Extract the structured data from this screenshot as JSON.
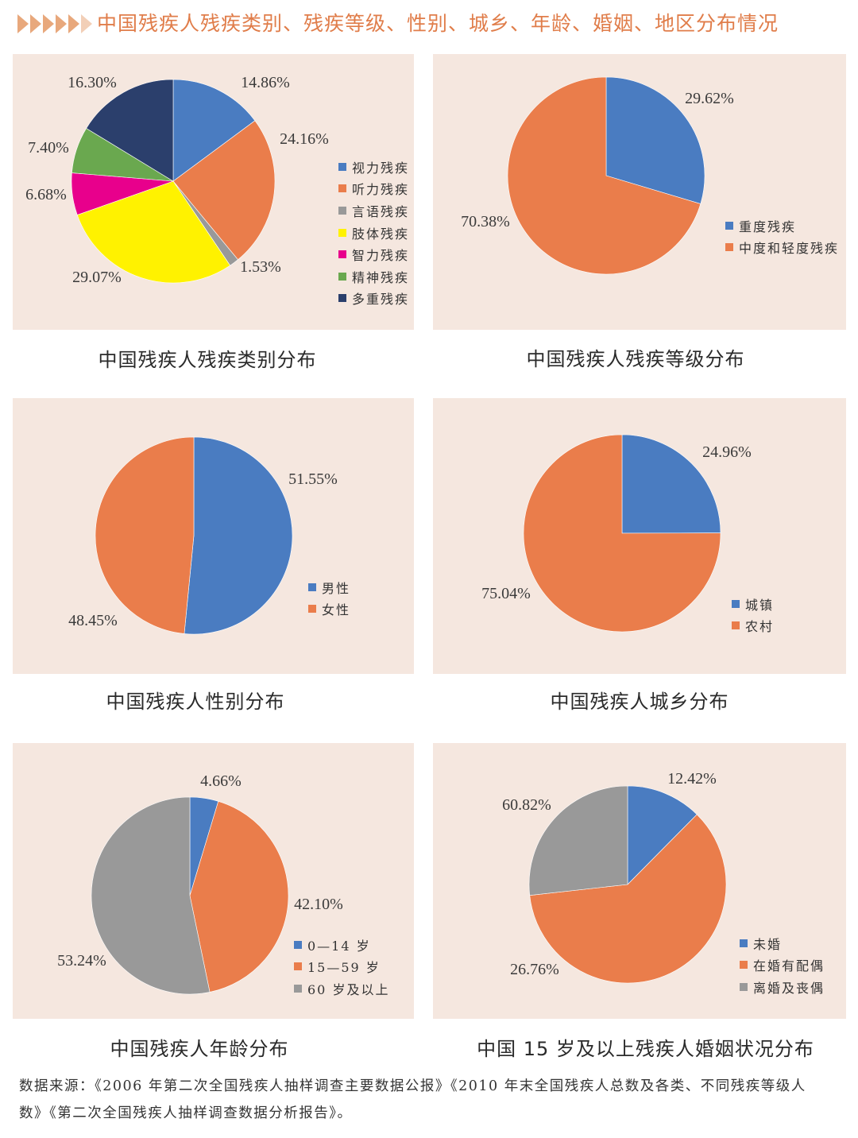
{
  "header": {
    "title": "中国残疾人残疾类别、残疾等级、性别、城乡、年龄、婚姻、地区分布情况",
    "arrow_color": "#e8a87c",
    "title_color": "#e07d4a"
  },
  "colors": {
    "blue": "#4a7cc1",
    "orange": "#ea7d4b",
    "gray": "#999999",
    "yellow": "#fff200",
    "magenta": "#e8008c",
    "green": "#6aa84f",
    "navy": "#2b3f6c",
    "panel_bg": "#f5e7df"
  },
  "chart_data": [
    {
      "type": "pie",
      "title": "中国残疾人残疾类别分布",
      "slices": [
        {
          "label": "视力残疾",
          "value": 14.86,
          "display": "14.86%",
          "color": "#4a7cc1"
        },
        {
          "label": "听力残疾",
          "value": 24.16,
          "display": "24.16%",
          "color": "#ea7d4b"
        },
        {
          "label": "言语残疾",
          "value": 1.53,
          "display": "1.53%",
          "color": "#999999"
        },
        {
          "label": "肢体残疾",
          "value": 29.07,
          "display": "29.07%",
          "color": "#fff200"
        },
        {
          "label": "智力残疾",
          "value": 6.68,
          "display": "6.68%",
          "color": "#e8008c"
        },
        {
          "label": "精神残疾",
          "value": 7.4,
          "display": "7.40%",
          "color": "#6aa84f"
        },
        {
          "label": "多重残疾",
          "value": 16.3,
          "display": "16.30%",
          "color": "#2b3f6c"
        }
      ]
    },
    {
      "type": "pie",
      "title": "中国残疾人残疾等级分布",
      "slices": [
        {
          "label": "重度残疾",
          "value": 29.62,
          "display": "29.62%",
          "color": "#4a7cc1"
        },
        {
          "label": "中度和轻度残疾",
          "value": 70.38,
          "display": "70.38%",
          "color": "#ea7d4b"
        }
      ]
    },
    {
      "type": "pie",
      "title": "中国残疾人性别分布",
      "slices": [
        {
          "label": "男性",
          "value": 51.55,
          "display": "51.55%",
          "color": "#4a7cc1"
        },
        {
          "label": "女性",
          "value": 48.45,
          "display": "48.45%",
          "color": "#ea7d4b"
        }
      ]
    },
    {
      "type": "pie",
      "title": "中国残疾人城乡分布",
      "slices": [
        {
          "label": "城镇",
          "value": 24.96,
          "display": "24.96%",
          "color": "#4a7cc1"
        },
        {
          "label": "农村",
          "value": 75.04,
          "display": "75.04%",
          "color": "#ea7d4b"
        }
      ]
    },
    {
      "type": "pie",
      "title": "中国残疾人年龄分布",
      "slices": [
        {
          "label": "0—14 岁",
          "value": 4.66,
          "display": "4.66%",
          "color": "#4a7cc1"
        },
        {
          "label": "15—59 岁",
          "value": 42.1,
          "display": "42.10%",
          "color": "#ea7d4b"
        },
        {
          "label": "60 岁及以上",
          "value": 53.24,
          "display": "53.24%",
          "color": "#999999"
        }
      ]
    },
    {
      "type": "pie",
      "title": "中国 15 岁及以上残疾人婚姻状况分布",
      "slices": [
        {
          "label": "未婚",
          "value": 12.42,
          "display": "12.42%",
          "color": "#4a7cc1"
        },
        {
          "label": "在婚有配偶",
          "value": 60.82,
          "display": "60.82%",
          "color": "#ea7d4b"
        },
        {
          "label": "离婚及丧偶",
          "value": 26.76,
          "display": "26.76%",
          "color": "#999999"
        }
      ]
    }
  ],
  "source": {
    "text": "数据来源：《2006 年第二次全国残疾人抽样调查主要数据公报》《2010 年末全国残疾人总数及各类、不同残疾等级人数》《第二次全国残疾人抽样调查数据分析报告》。"
  }
}
